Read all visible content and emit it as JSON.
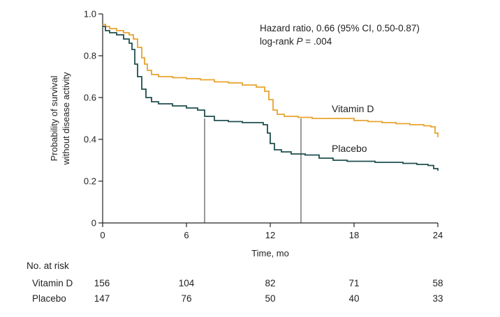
{
  "chart_data": {
    "type": "line",
    "subtype": "kaplan-meier",
    "xlabel": "Time, mo",
    "ylabel_line1": "Probability of survival",
    "ylabel_line2": "without disease activity",
    "xlim": [
      0,
      24
    ],
    "ylim": [
      0,
      1.0
    ],
    "xticks": [
      0,
      6,
      12,
      18,
      24
    ],
    "xtick_labels": [
      "0",
      "6",
      "12",
      "18",
      "24"
    ],
    "yticks": [
      0,
      0.2,
      0.4,
      0.6,
      0.8,
      1.0
    ],
    "ytick_labels": [
      "0",
      "0.2",
      "0.4",
      "0.6",
      "0.8",
      "1.0"
    ],
    "annotation_line1": "Hazard ratio, 0.66 (95% CI, 0.50-0.87)",
    "annotation_line2_prefix": "log-rank ",
    "annotation_line2_p": "P",
    "annotation_line2_suffix": " = .004",
    "median_lines": [
      {
        "x": 7.3,
        "y": 0.5
      },
      {
        "x": 14.2,
        "y": 0.5
      }
    ],
    "series": [
      {
        "name": "Vitamin D",
        "color": "#e8a32e",
        "points": [
          [
            0,
            0.95
          ],
          [
            0.2,
            0.94
          ],
          [
            0.5,
            0.93
          ],
          [
            1.0,
            0.92
          ],
          [
            1.5,
            0.91
          ],
          [
            1.9,
            0.9
          ],
          [
            2.2,
            0.88
          ],
          [
            2.5,
            0.84
          ],
          [
            2.8,
            0.79
          ],
          [
            3.0,
            0.76
          ],
          [
            3.2,
            0.73
          ],
          [
            3.5,
            0.71
          ],
          [
            4.0,
            0.7
          ],
          [
            5.0,
            0.695
          ],
          [
            6.0,
            0.69
          ],
          [
            7.0,
            0.685
          ],
          [
            8.0,
            0.675
          ],
          [
            9.0,
            0.67
          ],
          [
            10.0,
            0.66
          ],
          [
            11.0,
            0.65
          ],
          [
            11.6,
            0.63
          ],
          [
            11.9,
            0.59
          ],
          [
            12.2,
            0.54
          ],
          [
            12.5,
            0.52
          ],
          [
            13.0,
            0.51
          ],
          [
            14.0,
            0.505
          ],
          [
            15.0,
            0.5
          ],
          [
            16.0,
            0.5
          ],
          [
            17.0,
            0.5
          ],
          [
            18.0,
            0.49
          ],
          [
            19.0,
            0.485
          ],
          [
            20.0,
            0.48
          ],
          [
            21.0,
            0.475
          ],
          [
            22.0,
            0.47
          ],
          [
            23.0,
            0.465
          ],
          [
            23.5,
            0.46
          ],
          [
            23.8,
            0.43
          ],
          [
            24.0,
            0.41
          ]
        ]
      },
      {
        "name": "Placebo",
        "color": "#1f4e4e",
        "points": [
          [
            0,
            0.94
          ],
          [
            0.2,
            0.92
          ],
          [
            0.5,
            0.91
          ],
          [
            1.0,
            0.9
          ],
          [
            1.5,
            0.88
          ],
          [
            1.9,
            0.86
          ],
          [
            2.1,
            0.83
          ],
          [
            2.3,
            0.76
          ],
          [
            2.5,
            0.7
          ],
          [
            2.8,
            0.64
          ],
          [
            3.1,
            0.6
          ],
          [
            3.5,
            0.58
          ],
          [
            4.0,
            0.57
          ],
          [
            5.0,
            0.56
          ],
          [
            6.0,
            0.55
          ],
          [
            6.8,
            0.54
          ],
          [
            7.3,
            0.51
          ],
          [
            8.0,
            0.49
          ],
          [
            9.0,
            0.485
          ],
          [
            10.0,
            0.48
          ],
          [
            11.0,
            0.48
          ],
          [
            11.5,
            0.47
          ],
          [
            11.8,
            0.43
          ],
          [
            12.0,
            0.38
          ],
          [
            12.3,
            0.35
          ],
          [
            12.8,
            0.34
          ],
          [
            13.5,
            0.33
          ],
          [
            14.5,
            0.325
          ],
          [
            15.5,
            0.31
          ],
          [
            16.5,
            0.3
          ],
          [
            17.5,
            0.295
          ],
          [
            18.5,
            0.295
          ],
          [
            19.5,
            0.29
          ],
          [
            20.5,
            0.29
          ],
          [
            21.5,
            0.285
          ],
          [
            22.5,
            0.28
          ],
          [
            23.3,
            0.275
          ],
          [
            23.7,
            0.26
          ],
          [
            24.0,
            0.25
          ]
        ]
      }
    ],
    "series_label_positions": [
      {
        "name": "Vitamin D",
        "x": 16.4,
        "y": 0.53
      },
      {
        "name": "Placebo",
        "x": 16.4,
        "y": 0.34
      }
    ]
  },
  "risk_table": {
    "title": "No. at risk",
    "rows": [
      {
        "label": "Vitamin D",
        "values": [
          "156",
          "104",
          "82",
          "71",
          "58"
        ]
      },
      {
        "label": "Placebo",
        "values": [
          "147",
          "76",
          "50",
          "40",
          "33"
        ]
      }
    ]
  }
}
